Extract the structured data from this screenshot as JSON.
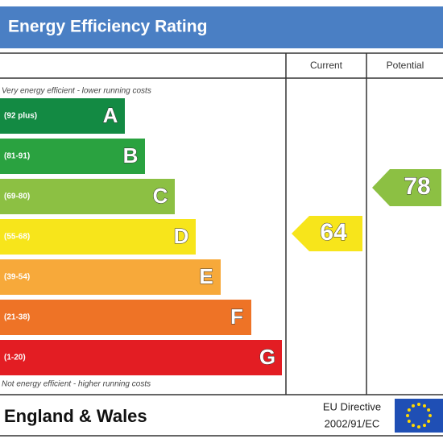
{
  "header": {
    "title": "Energy Efficiency Rating"
  },
  "columns": [
    "Current",
    "Potential"
  ],
  "top_note": "Very energy efficient - lower running costs",
  "bottom_note": "Not energy efficient - higher running costs",
  "bands": [
    {
      "range": "(92 plus)",
      "letter": "A"
    },
    {
      "range": "(81-91)",
      "letter": "B"
    },
    {
      "range": "(69-80)",
      "letter": "C"
    },
    {
      "range": "(55-68)",
      "letter": "D"
    },
    {
      "range": "(39-54)",
      "letter": "E"
    },
    {
      "range": "(21-38)",
      "letter": "F"
    },
    {
      "range": "(1-20)",
      "letter": "G"
    }
  ],
  "current": {
    "value": 64
  },
  "potential": {
    "value": 78
  },
  "footer": {
    "region": "England & Wales",
    "directive_line1": "EU Directive",
    "directive_line2": "2002/91/EC"
  }
}
